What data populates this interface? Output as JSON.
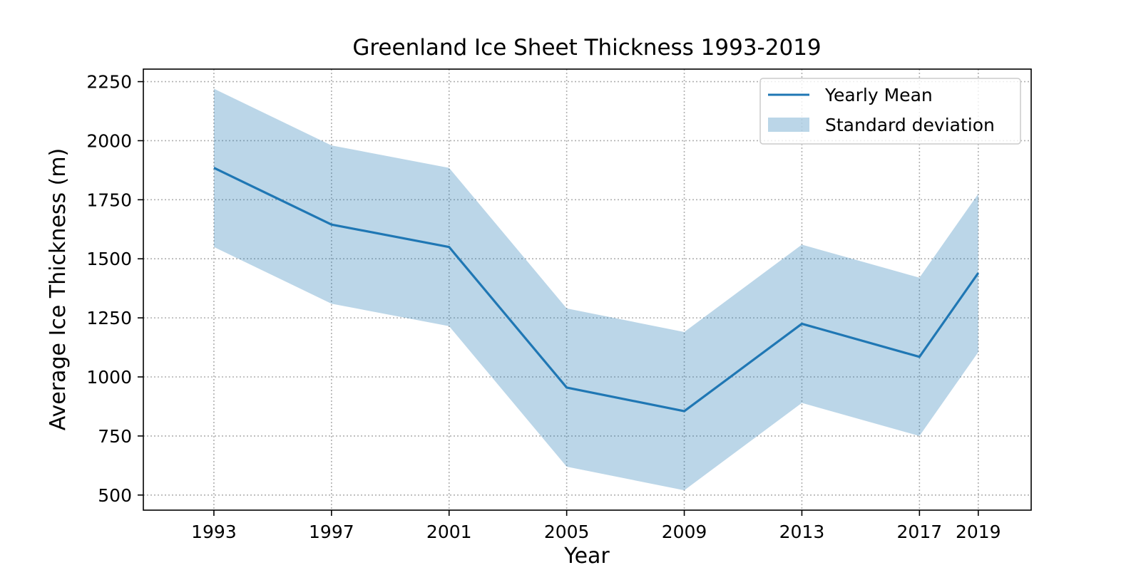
{
  "chart_data": {
    "type": "line",
    "title": "Greenland Ice Sheet Thickness 1993-2019",
    "xlabel": "Year",
    "ylabel": "Average Ice Thickness (m)",
    "x": [
      1993,
      1997,
      2001,
      2005,
      2009,
      2013,
      2017,
      2019
    ],
    "x_ticks": [
      "1993",
      "1997",
      "2001",
      "2005",
      "2009",
      "2013",
      "2017",
      "2019"
    ],
    "y_ticks": [
      "500",
      "750",
      "1000",
      "1250",
      "1500",
      "1750",
      "2000",
      "2250"
    ],
    "xlim": [
      1990.6,
      2020.8
    ],
    "ylim": [
      436,
      2303
    ],
    "grid": true,
    "legend_position": "top-right",
    "series": [
      {
        "name": "Yearly Mean",
        "kind": "line",
        "color": "#1f77b4",
        "values": [
          1885,
          1645,
          1550,
          955,
          855,
          1225,
          1085,
          1440
        ]
      },
      {
        "name": "Standard deviation",
        "kind": "band",
        "color": "#1f77b4",
        "opacity": 0.3,
        "lower": [
          1550,
          1310,
          1215,
          620,
          520,
          890,
          750,
          1105
        ],
        "upper": [
          2220,
          1980,
          1885,
          1290,
          1190,
          1560,
          1420,
          1775
        ]
      }
    ]
  }
}
